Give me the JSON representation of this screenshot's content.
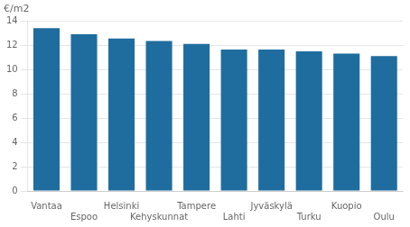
{
  "chart_data": {
    "type": "bar",
    "ylabel": "€/m2",
    "categories": [
      "Vantaa",
      "Espoo",
      "Helsinki",
      "Kehyskunnat",
      "Tampere",
      "Lahti",
      "Jyväskylä",
      "Turku",
      "Kuopio",
      "Oulu"
    ],
    "values": [
      13.4,
      12.9,
      12.55,
      12.35,
      12.1,
      11.65,
      11.65,
      11.5,
      11.3,
      11.1
    ],
    "color": "#1f6d9e",
    "ylim": [
      0,
      14
    ],
    "yticks": [
      0,
      2,
      4,
      6,
      8,
      10,
      12,
      14
    ],
    "grid": true
  }
}
